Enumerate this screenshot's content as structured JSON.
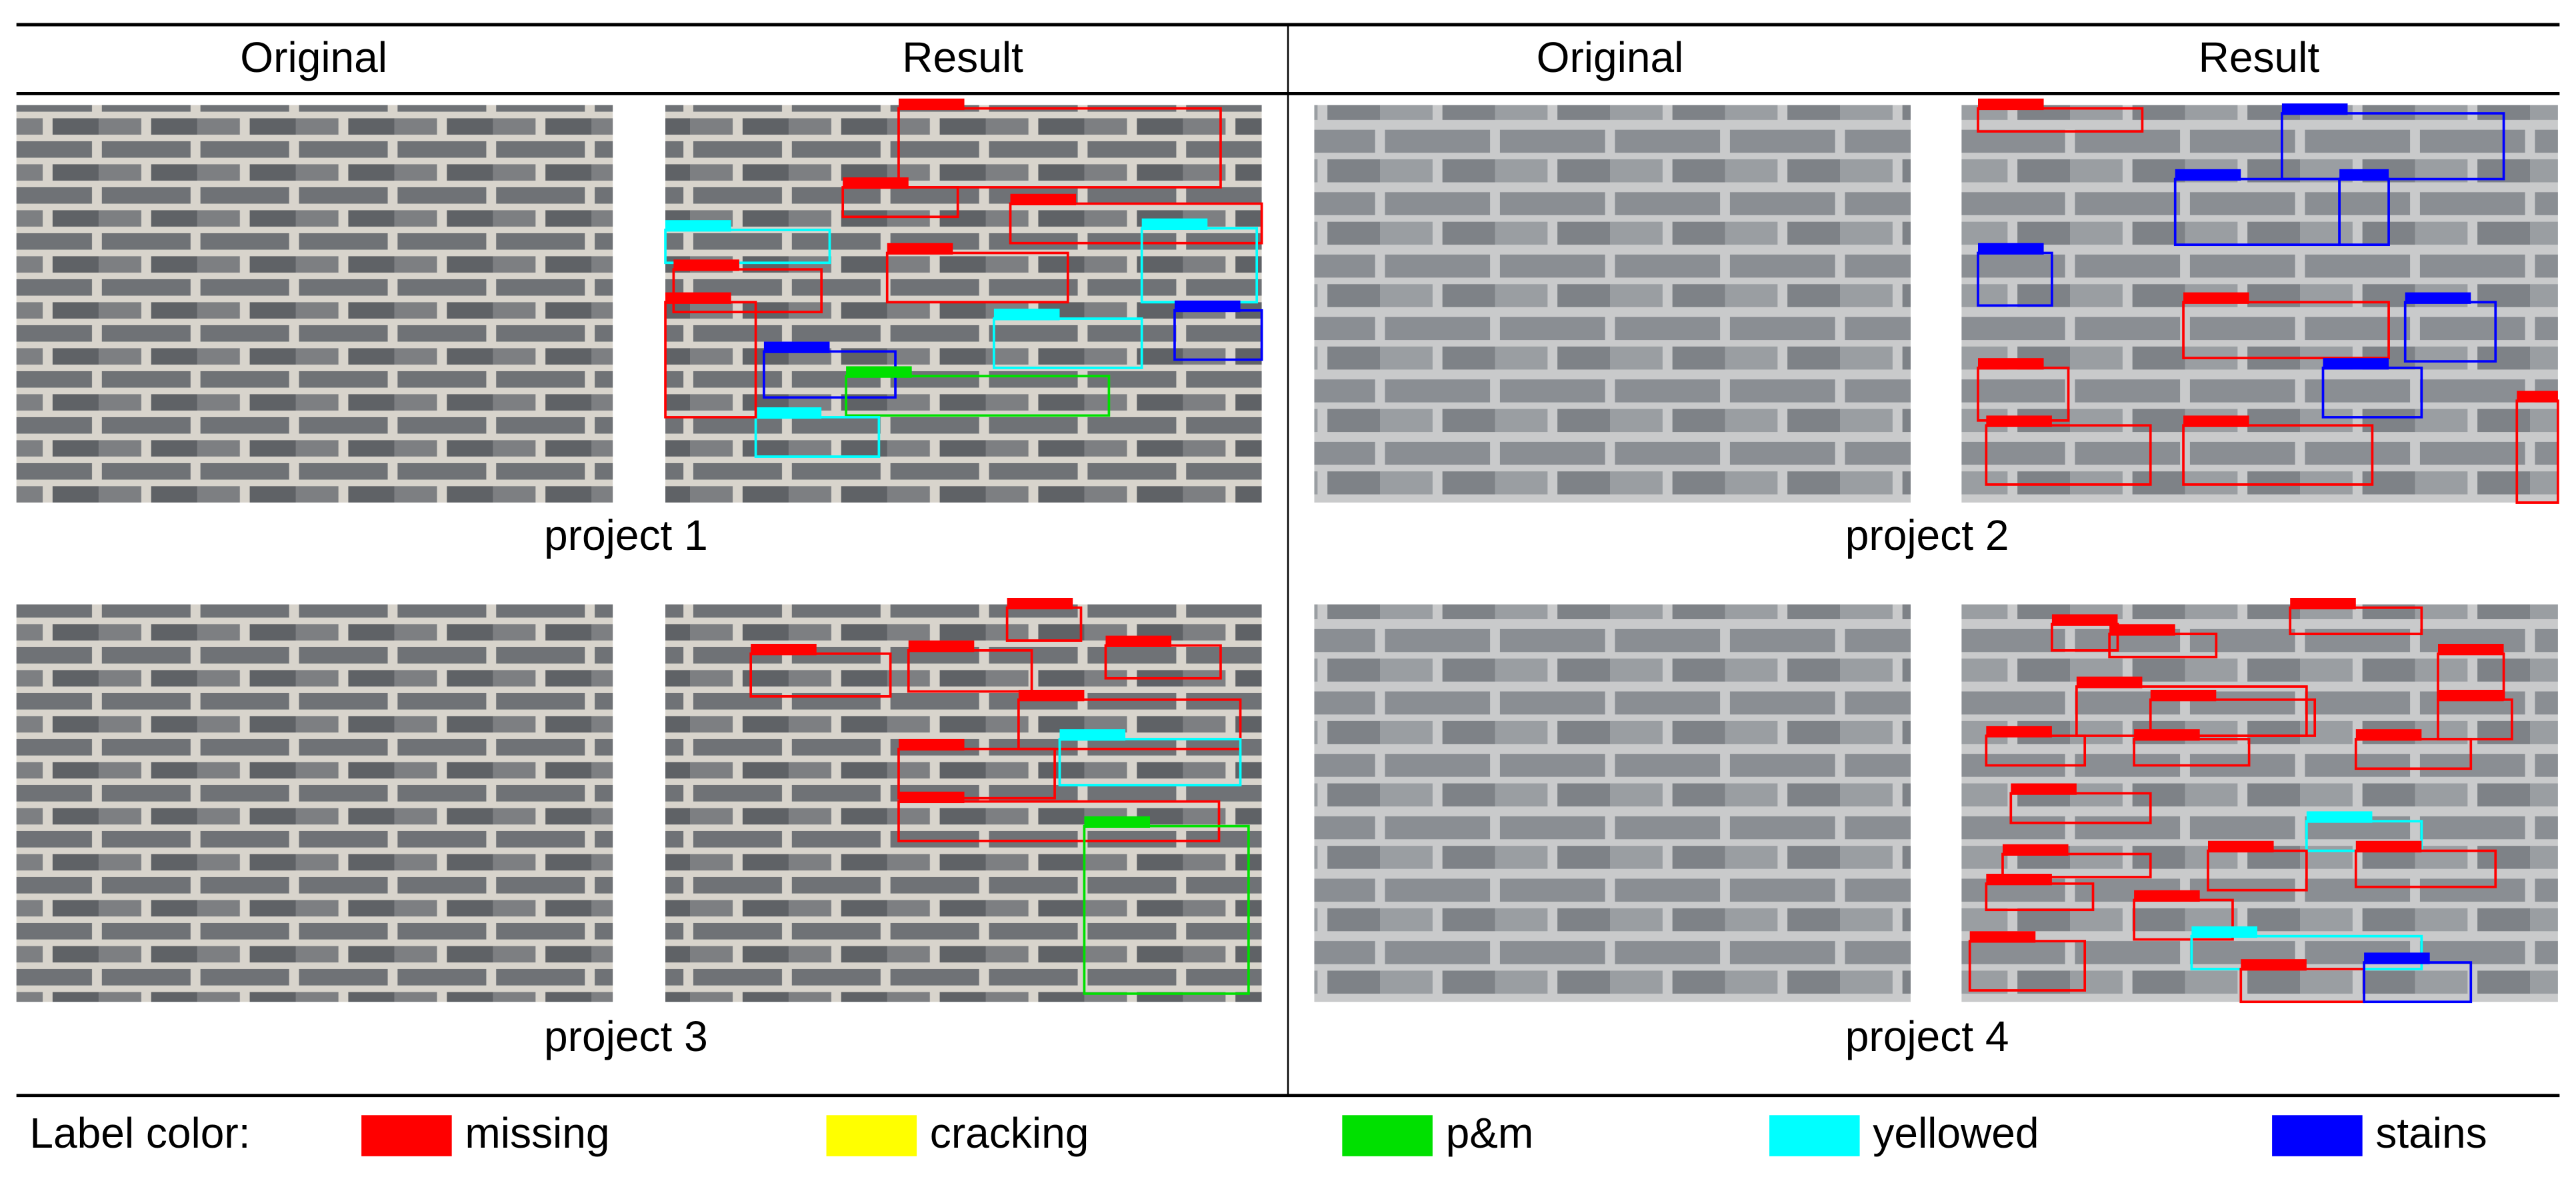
{
  "header": {
    "columns": [
      "Original",
      "Result",
      "Original",
      "Result"
    ]
  },
  "projects": [
    {
      "label": "project 1"
    },
    {
      "label": "project 2"
    },
    {
      "label": "project 3"
    },
    {
      "label": "project 4"
    }
  ],
  "legend": {
    "title": "Label color:",
    "items": [
      {
        "label": "missing",
        "color": "#ff0000"
      },
      {
        "label": "cracking",
        "color": "#ffff00"
      },
      {
        "label": "p&m",
        "color": "#00e000"
      },
      {
        "label": "yellowed",
        "color": "#00ffff"
      },
      {
        "label": "stains",
        "color": "#0000ff"
      }
    ]
  }
}
